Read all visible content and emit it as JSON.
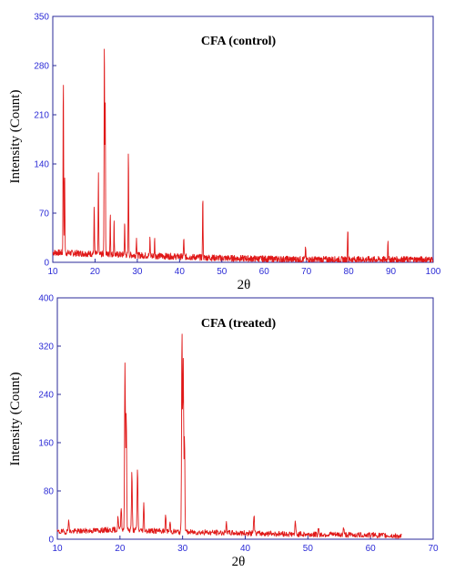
{
  "chart_data": [
    {
      "type": "line",
      "title": "CFA (control)",
      "xlabel": "2θ",
      "ylabel": "Intensity (Count)",
      "xlim": [
        10,
        100
      ],
      "ylim": [
        0,
        350
      ],
      "xticks": [
        10,
        20,
        30,
        40,
        50,
        60,
        70,
        80,
        90,
        100
      ],
      "yticks": [
        0,
        70,
        140,
        210,
        280,
        350
      ],
      "grid": false,
      "color": "#e01818",
      "baseline": [
        [
          10,
          14
        ],
        [
          20,
          12
        ],
        [
          30,
          10
        ],
        [
          40,
          8
        ],
        [
          50,
          6
        ],
        [
          60,
          5
        ],
        [
          70,
          4
        ],
        [
          80,
          4
        ],
        [
          90,
          4
        ],
        [
          100,
          4
        ]
      ],
      "peaks": [
        {
          "x": 12.5,
          "y": 268
        },
        {
          "x": 12.8,
          "y": 128
        },
        {
          "x": 19.8,
          "y": 78
        },
        {
          "x": 20.8,
          "y": 128
        },
        {
          "x": 22.2,
          "y": 322
        },
        {
          "x": 22.4,
          "y": 238
        },
        {
          "x": 23.6,
          "y": 70
        },
        {
          "x": 24.5,
          "y": 58
        },
        {
          "x": 27.0,
          "y": 58
        },
        {
          "x": 27.9,
          "y": 162
        },
        {
          "x": 29.8,
          "y": 38
        },
        {
          "x": 33.0,
          "y": 35
        },
        {
          "x": 34.1,
          "y": 33
        },
        {
          "x": 41.0,
          "y": 36
        },
        {
          "x": 45.5,
          "y": 95
        },
        {
          "x": 69.8,
          "y": 24
        },
        {
          "x": 79.8,
          "y": 50
        },
        {
          "x": 89.3,
          "y": 33
        }
      ]
    },
    {
      "type": "line",
      "title": "CFA (treated)",
      "xlabel": "2θ",
      "ylabel": "Intensity (Count)",
      "xlim": [
        10,
        70
      ],
      "ylim": [
        0,
        400
      ],
      "xticks": [
        10,
        20,
        30,
        40,
        50,
        60,
        70
      ],
      "yticks": [
        0,
        80,
        160,
        240,
        320,
        400
      ],
      "grid": false,
      "color": "#e01818",
      "baseline": [
        [
          10,
          12
        ],
        [
          20,
          16
        ],
        [
          30,
          12
        ],
        [
          40,
          10
        ],
        [
          50,
          8
        ],
        [
          60,
          7
        ],
        [
          65,
          5
        ]
      ],
      "peaks": [
        {
          "x": 11.8,
          "y": 35
        },
        {
          "x": 19.7,
          "y": 38
        },
        {
          "x": 20.2,
          "y": 55
        },
        {
          "x": 20.8,
          "y": 295
        },
        {
          "x": 21.0,
          "y": 215
        },
        {
          "x": 21.9,
          "y": 112
        },
        {
          "x": 22.8,
          "y": 122
        },
        {
          "x": 23.8,
          "y": 58
        },
        {
          "x": 27.3,
          "y": 38
        },
        {
          "x": 28.0,
          "y": 28
        },
        {
          "x": 29.9,
          "y": 355
        },
        {
          "x": 30.1,
          "y": 300
        },
        {
          "x": 30.3,
          "y": 175
        },
        {
          "x": 37.0,
          "y": 25
        },
        {
          "x": 41.4,
          "y": 43
        },
        {
          "x": 48.0,
          "y": 28
        },
        {
          "x": 51.7,
          "y": 20
        },
        {
          "x": 55.7,
          "y": 20
        }
      ]
    }
  ]
}
